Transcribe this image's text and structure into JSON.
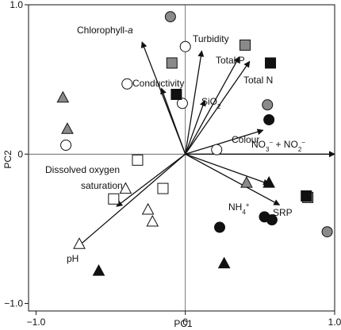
{
  "chart_data": {
    "type": "scatter",
    "subtype": "pca-biplot",
    "title": "",
    "xlabel": "PC1",
    "ylabel": "PC2",
    "xlim": [
      -1.05,
      1.0
    ],
    "ylim": [
      -1.05,
      1.0
    ],
    "x_ticks": [
      {
        "value": -1.0,
        "label": "−1.0"
      },
      {
        "value": 0.0,
        "label": "0"
      },
      {
        "value": 1.0,
        "label": "1.0"
      }
    ],
    "y_ticks": [
      {
        "value": 1.0,
        "label": "1.0"
      },
      {
        "value": 0.0,
        "label": "0"
      },
      {
        "value": -1.0,
        "label": "−1.0"
      }
    ],
    "zero_lines": true,
    "grid": false,
    "legend": "none",
    "colors": {
      "filled_black": "#111111",
      "filled_gray": "#8a8a8a",
      "open": "#ffffff",
      "stroke": "#111111"
    },
    "vectors": [
      {
        "name": "Chlorophyll-a",
        "x": -0.29,
        "y": 0.75
      },
      {
        "name": "Turbidity",
        "x": 0.11,
        "y": 0.69
      },
      {
        "name": "Total P",
        "x": 0.36,
        "y": 0.65
      },
      {
        "name": "Total N",
        "x": 0.43,
        "y": 0.62
      },
      {
        "name": "Conductivity",
        "x": -0.16,
        "y": 0.44
      },
      {
        "name": "SiO2",
        "x": 0.13,
        "y": 0.36
      },
      {
        "name": "Colour",
        "x": 0.52,
        "y": 0.16
      },
      {
        "name": "NO3− + NO2−",
        "x": 1.0,
        "y": 0.0
      },
      {
        "name": "NH4+",
        "x": 0.56,
        "y": -0.2
      },
      {
        "name": "SRP",
        "x": 0.63,
        "y": -0.34
      },
      {
        "name": "Dissolved oxygen saturation",
        "x": -0.46,
        "y": -0.35
      },
      {
        "name": "pH",
        "x": -0.72,
        "y": -0.62
      }
    ],
    "vector_labels": [
      {
        "text": "Chlorophyll-",
        "italic_suffix": "a"
      },
      {
        "text": "Turbidity"
      },
      {
        "text": "Total P"
      },
      {
        "text": "Total N"
      },
      {
        "text": "Conductivity"
      },
      {
        "text": "SiO",
        "subscript": "2"
      },
      {
        "text": "Colour"
      },
      {
        "text": "NO",
        "subscript": "3",
        "superscript": "−",
        "after": " + NO",
        "subscript2": "2",
        "superscript2": "−"
      },
      {
        "text": "NH",
        "subscript": "4",
        "superscript": "+"
      },
      {
        "text": "SRP"
      },
      {
        "text": "Dissolved oxygen"
      },
      {
        "text": "saturation"
      },
      {
        "text": "pH"
      }
    ],
    "series": [
      {
        "marker": "circle",
        "fill": "gray",
        "points": [
          [
            -0.1,
            0.92
          ],
          [
            0.55,
            0.33
          ],
          [
            0.95,
            -0.52
          ]
        ]
      },
      {
        "marker": "circle",
        "fill": "open",
        "points": [
          [
            0.0,
            0.72
          ],
          [
            -0.39,
            0.47
          ],
          [
            -0.02,
            0.34
          ],
          [
            -0.8,
            0.06
          ],
          [
            0.21,
            0.03
          ]
        ]
      },
      {
        "marker": "circle",
        "fill": "black",
        "points": [
          [
            0.56,
            0.23
          ],
          [
            0.23,
            -0.49
          ],
          [
            0.53,
            -0.42
          ],
          [
            0.58,
            -0.44
          ]
        ]
      },
      {
        "marker": "square",
        "fill": "gray",
        "points": [
          [
            0.4,
            0.73
          ],
          [
            -0.09,
            0.61
          ],
          [
            0.82,
            -0.29
          ]
        ]
      },
      {
        "marker": "square",
        "fill": "black",
        "points": [
          [
            0.57,
            0.61
          ],
          [
            -0.06,
            0.4
          ],
          [
            0.81,
            -0.28
          ]
        ]
      },
      {
        "marker": "square",
        "fill": "open",
        "points": [
          [
            -0.32,
            -0.04
          ],
          [
            -0.15,
            -0.23
          ],
          [
            -0.48,
            -0.3
          ]
        ]
      },
      {
        "marker": "triangle",
        "fill": "gray",
        "points": [
          [
            -0.82,
            0.38
          ],
          [
            -0.79,
            0.17
          ],
          [
            0.41,
            -0.19
          ]
        ]
      },
      {
        "marker": "triangle",
        "fill": "black",
        "points": [
          [
            0.56,
            -0.19
          ],
          [
            -0.58,
            -0.78
          ],
          [
            0.26,
            -0.73
          ]
        ]
      },
      {
        "marker": "triangle",
        "fill": "open",
        "points": [
          [
            -0.4,
            -0.23
          ],
          [
            -0.25,
            -0.37
          ],
          [
            -0.22,
            -0.45
          ],
          [
            -0.71,
            -0.6
          ]
        ]
      }
    ]
  }
}
